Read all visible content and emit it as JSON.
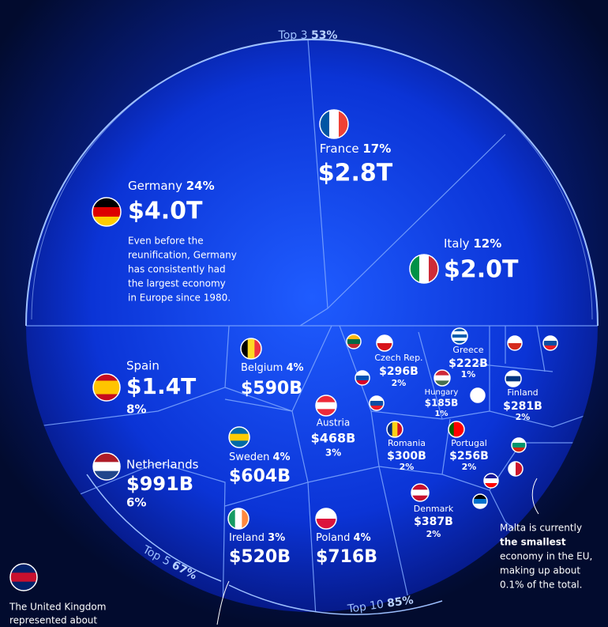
{
  "brackets": [
    {
      "label": "Top 3",
      "pct": "53%"
    },
    {
      "label": "Top 5",
      "pct": "67%"
    },
    {
      "label": "Top 10",
      "pct": "85%"
    }
  ],
  "cells": [
    {
      "country": "Germany",
      "share": "24%",
      "gdp": "$4.0T",
      "note": [
        "Even before the",
        "reunification, Germany",
        "has consistently had",
        "the largest economy",
        "in Europe since 1980."
      ]
    },
    {
      "country": "France",
      "share": "17%",
      "gdp": "$2.8T"
    },
    {
      "country": "Italy",
      "share": "12%",
      "gdp": "$2.0T"
    },
    {
      "country": "Spain",
      "gdp": "$1.4T",
      "share": "8%"
    },
    {
      "country": "Netherlands",
      "gdp": "$991B",
      "share": "6%"
    },
    {
      "country": "Belgium",
      "share": "4%",
      "gdp": "$590B"
    },
    {
      "country": "Sweden",
      "share": "4%",
      "gdp": "$604B"
    },
    {
      "country": "Ireland",
      "share": "3%",
      "gdp": "$520B"
    },
    {
      "country": "Poland",
      "share": "4%",
      "gdp": "$716B"
    },
    {
      "country": "Austria",
      "gdp": "$468B",
      "share": "3%"
    },
    {
      "country": "Czech Rep.",
      "gdp": "$296B",
      "share": "2%"
    },
    {
      "country": "Greece",
      "gdp": "$222B",
      "share": "1%"
    },
    {
      "country": "Hungary",
      "gdp": "$185B",
      "share": "1%"
    },
    {
      "country": "Finland",
      "gdp": "$281B",
      "share": "2%"
    },
    {
      "country": "Romania",
      "gdp": "$300B",
      "share": "2%"
    },
    {
      "country": "Portugal",
      "gdp": "$256B",
      "share": "2%"
    },
    {
      "country": "Denmark",
      "gdp": "$387B",
      "share": "2%"
    }
  ],
  "annotations": {
    "malta": [
      "Malta is currently",
      "the smallest",
      "economy in the EU,",
      "making up about",
      "0.1% of the total."
    ],
    "uk": [
      "The United Kingdom",
      "represented about"
    ]
  }
}
